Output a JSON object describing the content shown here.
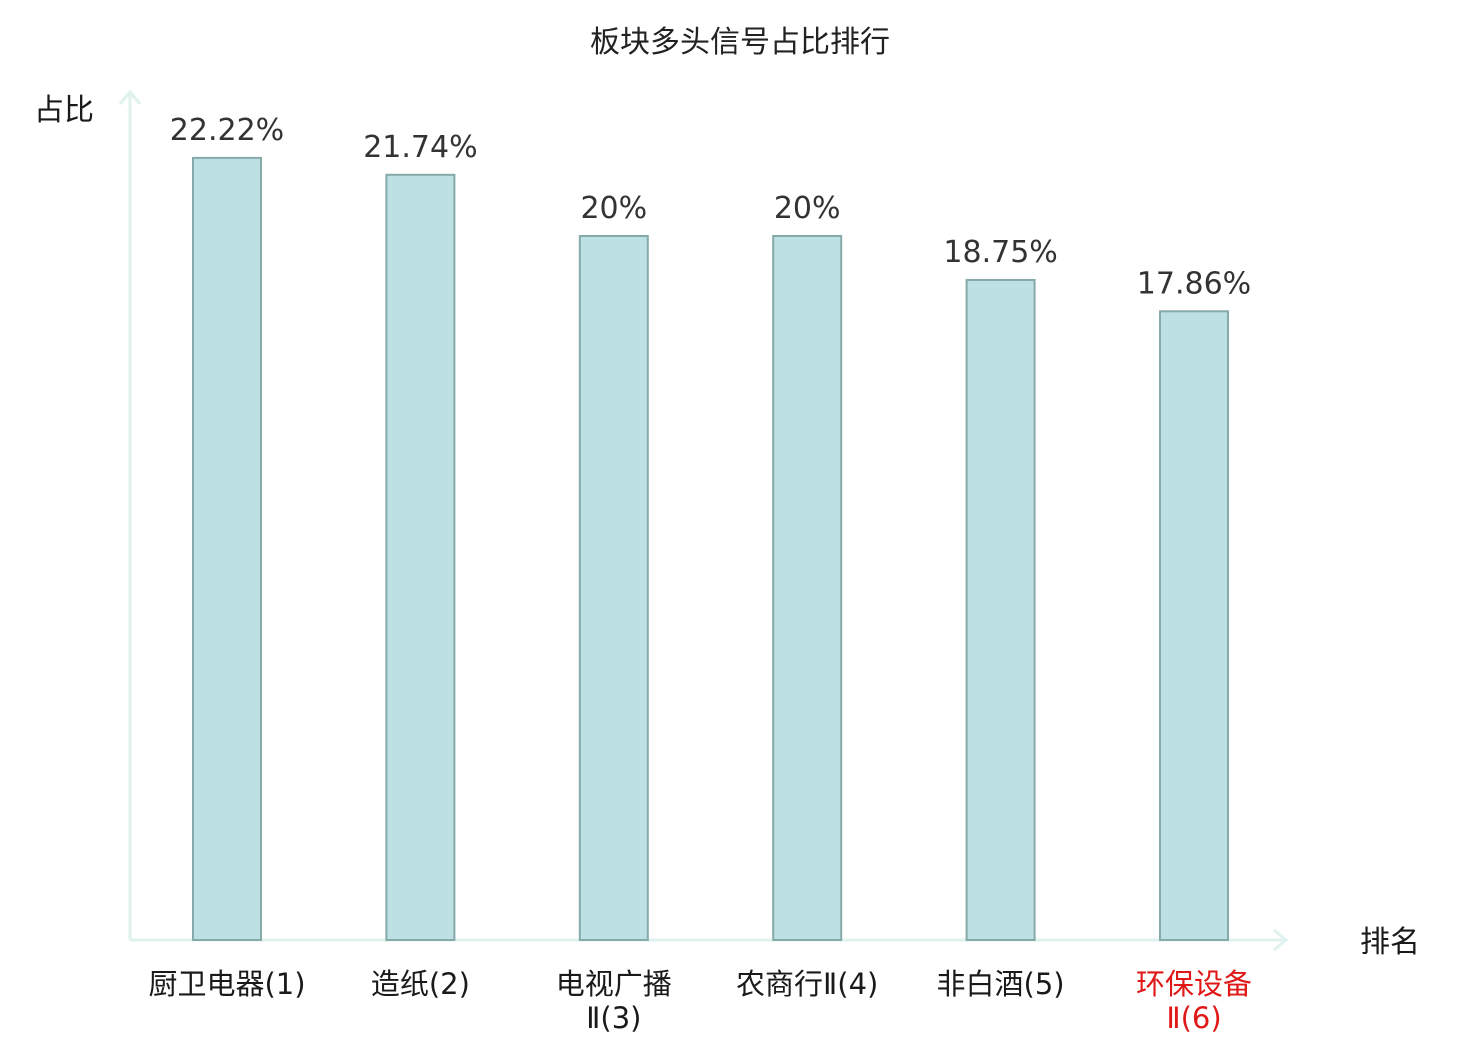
{
  "chart_data": {
    "type": "bar",
    "title": "板块多头信号占比排行",
    "xlabel": "排名",
    "ylabel": "占比",
    "categories": [
      [
        "厨卫电器(1)"
      ],
      [
        "造纸(2)"
      ],
      [
        "电视广播",
        "Ⅱ(3)"
      ],
      [
        "农商行Ⅱ(4)"
      ],
      [
        "非白酒(5)"
      ],
      [
        "环保设备",
        "Ⅱ(6)"
      ]
    ],
    "values": [
      22.22,
      21.74,
      20,
      20,
      18.75,
      17.86
    ],
    "value_labels": [
      "22.22%",
      "21.74%",
      "20%",
      "20%",
      "18.75%",
      "17.86%"
    ],
    "ylim": [
      0,
      25
    ],
    "highlight_index": 5,
    "grid": false,
    "legend": "none"
  },
  "colors": {
    "bar_fill": "#bde1e3",
    "bar_stroke": "#86a9aa",
    "axis": "#dff2ee",
    "category_text": "#1a1a1a",
    "highlight_text": "#e01818"
  }
}
